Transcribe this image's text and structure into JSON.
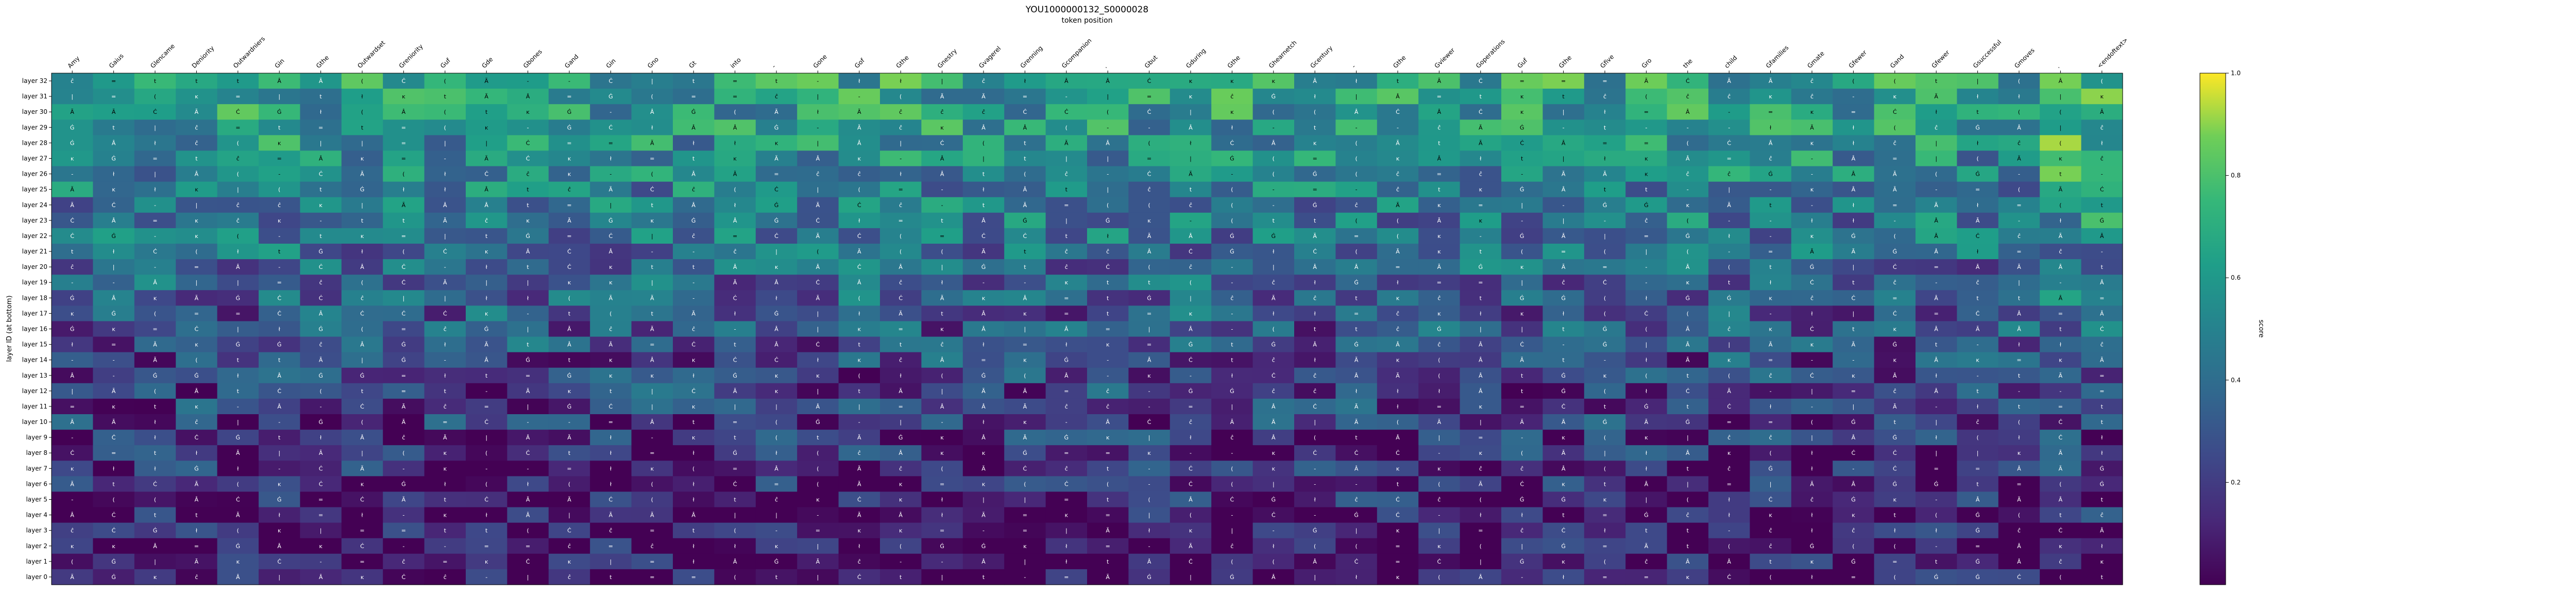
{
  "chart_data": {
    "type": "heatmap",
    "title": "YOU1000000132_S0000028",
    "xlabel": "token position",
    "ylabel": "layer ID (at bottom)",
    "colorbar_label": "score",
    "colorbar_ticks": [
      "0.2",
      "0.4",
      "0.6",
      "0.8",
      "1.0"
    ],
    "colorbar_range": [
      0.0,
      1.0
    ],
    "x_tokens": [
      "Amy",
      "Gaius",
      "Glencame",
      "Deniority",
      "Outwardniers",
      "Gin",
      "Gthe",
      "Outwardset",
      "Greniority",
      "Guf",
      "Gde",
      "Gbones",
      "Gand",
      "Gin",
      "Gno",
      "Gt",
      "into",
      "-",
      "Gone",
      "Gof",
      "Gthe",
      "Gnestry",
      "Gvagerel",
      "Grenning",
      "Gcompanion",
      ".",
      "Gbut",
      "Gduring",
      "Gthe",
      "Ghearnetch",
      "Gcentury",
      "-",
      "Gthe",
      "Gviewer",
      "Goperations",
      "Guf",
      "Gthe",
      "Gfive",
      "Gro",
      "the",
      "child",
      "Gfamilies",
      "Gmate",
      "Gfewer",
      "Gand",
      "Gfewer",
      "Gsuccessful",
      "Gmoves",
      ".",
      "<endoftext>"
    ],
    "y_layers": [
      "layer 32",
      "layer 31",
      "layer 30",
      "layer 29",
      "layer 28",
      "layer 27",
      "layer 26",
      "layer 25",
      "layer 24",
      "layer 23",
      "layer 22",
      "layer 21",
      "layer 20",
      "layer 19",
      "layer 18",
      "layer 17",
      "layer 16",
      "layer 15",
      "layer 14",
      "layer 13",
      "layer 12",
      "layer 11",
      "layer 10",
      "layer 9",
      "layer 8",
      "layer 7",
      "layer 6",
      "layer 5",
      "layer 4",
      "layer 3",
      "layer 2",
      "layer 1",
      "layer 0"
    ],
    "cell_glyphs": [
      "Ġ",
      "Â",
      "ĉ",
      "Ċ",
      "ł",
      "|",
      "=",
      "Ã",
      "ĸ",
      "-",
      "t",
      "("
    ],
    "grid": false
  }
}
